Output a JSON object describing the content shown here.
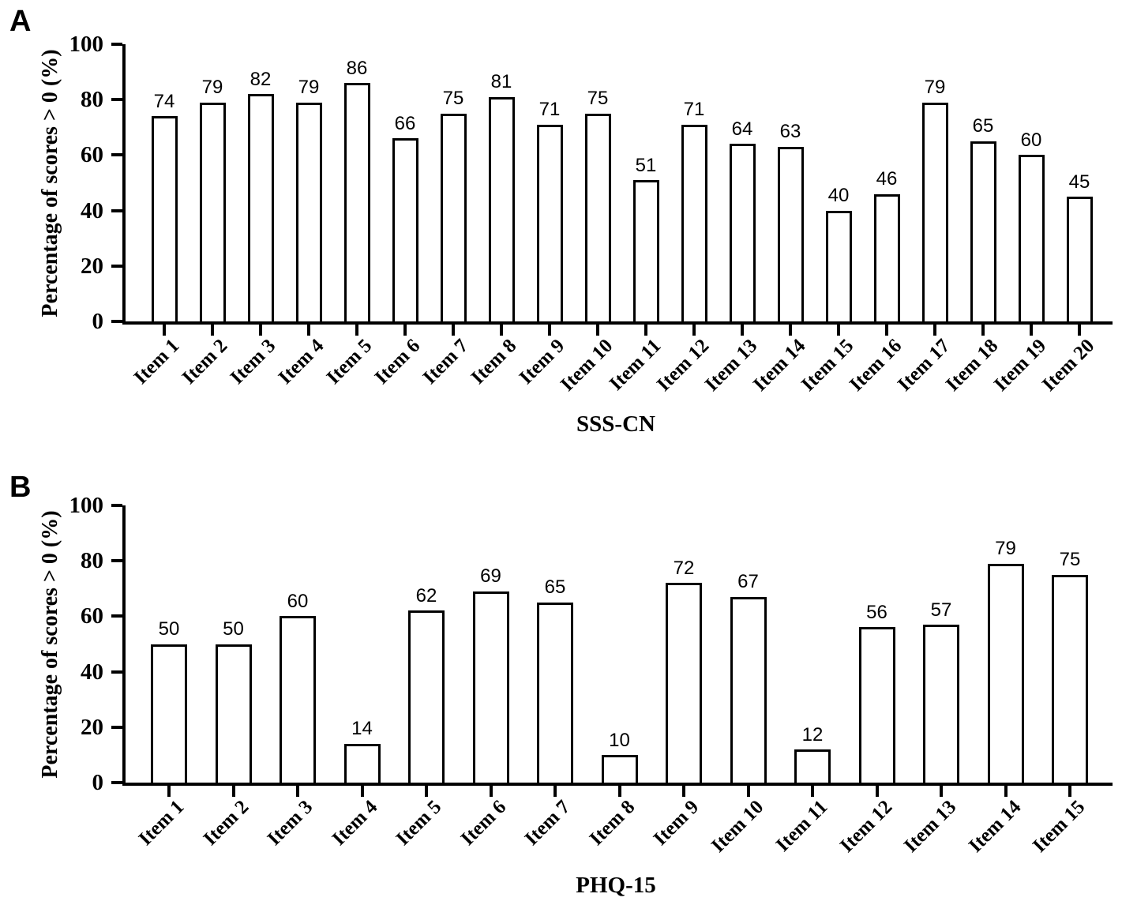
{
  "chart_data": [
    {
      "type": "bar",
      "panel_label": "A",
      "categories": [
        "Item 1",
        "Item 2",
        "Item 3",
        "Item 4",
        "Item 5",
        "Item 6",
        "Item 7",
        "Item 8",
        "Item 9",
        "Item 10",
        "Item 11",
        "Item 12",
        "Item 13",
        "Item 14",
        "Item 15",
        "Item 16",
        "Item 17",
        "Item 18",
        "Item 19",
        "Item 20"
      ],
      "values": [
        74,
        79,
        82,
        79,
        86,
        66,
        75,
        81,
        71,
        75,
        51,
        71,
        64,
        63,
        40,
        46,
        79,
        65,
        60,
        45
      ],
      "xlabel": "SSS-CN",
      "ylabel": "Percentage of scores > 0 (%)",
      "ylim": [
        0,
        100
      ],
      "yticks": [
        0,
        20,
        40,
        60,
        80,
        100
      ],
      "grid": false,
      "legend": false,
      "value_labels_shown": true,
      "bar_fill": "#ffffff",
      "bar_edge": "#000000"
    },
    {
      "type": "bar",
      "panel_label": "B",
      "categories": [
        "Item 1",
        "Item 2",
        "Item 3",
        "Item 4",
        "Item 5",
        "Item 6",
        "Item 7",
        "Item 8",
        "Item 9",
        "Item 10",
        "Item 11",
        "Item 12",
        "Item 13",
        "Item 14",
        "Item 15"
      ],
      "values": [
        50,
        50,
        60,
        14,
        62,
        69,
        65,
        10,
        72,
        67,
        12,
        56,
        57,
        79,
        75
      ],
      "xlabel": "PHQ-15",
      "ylabel": "Percentage of scores > 0 (%)",
      "ylim": [
        0,
        100
      ],
      "yticks": [
        0,
        20,
        40,
        60,
        80,
        100
      ],
      "grid": false,
      "legend": false,
      "value_labels_shown": true,
      "bar_fill": "#ffffff",
      "bar_edge": "#000000"
    }
  ]
}
